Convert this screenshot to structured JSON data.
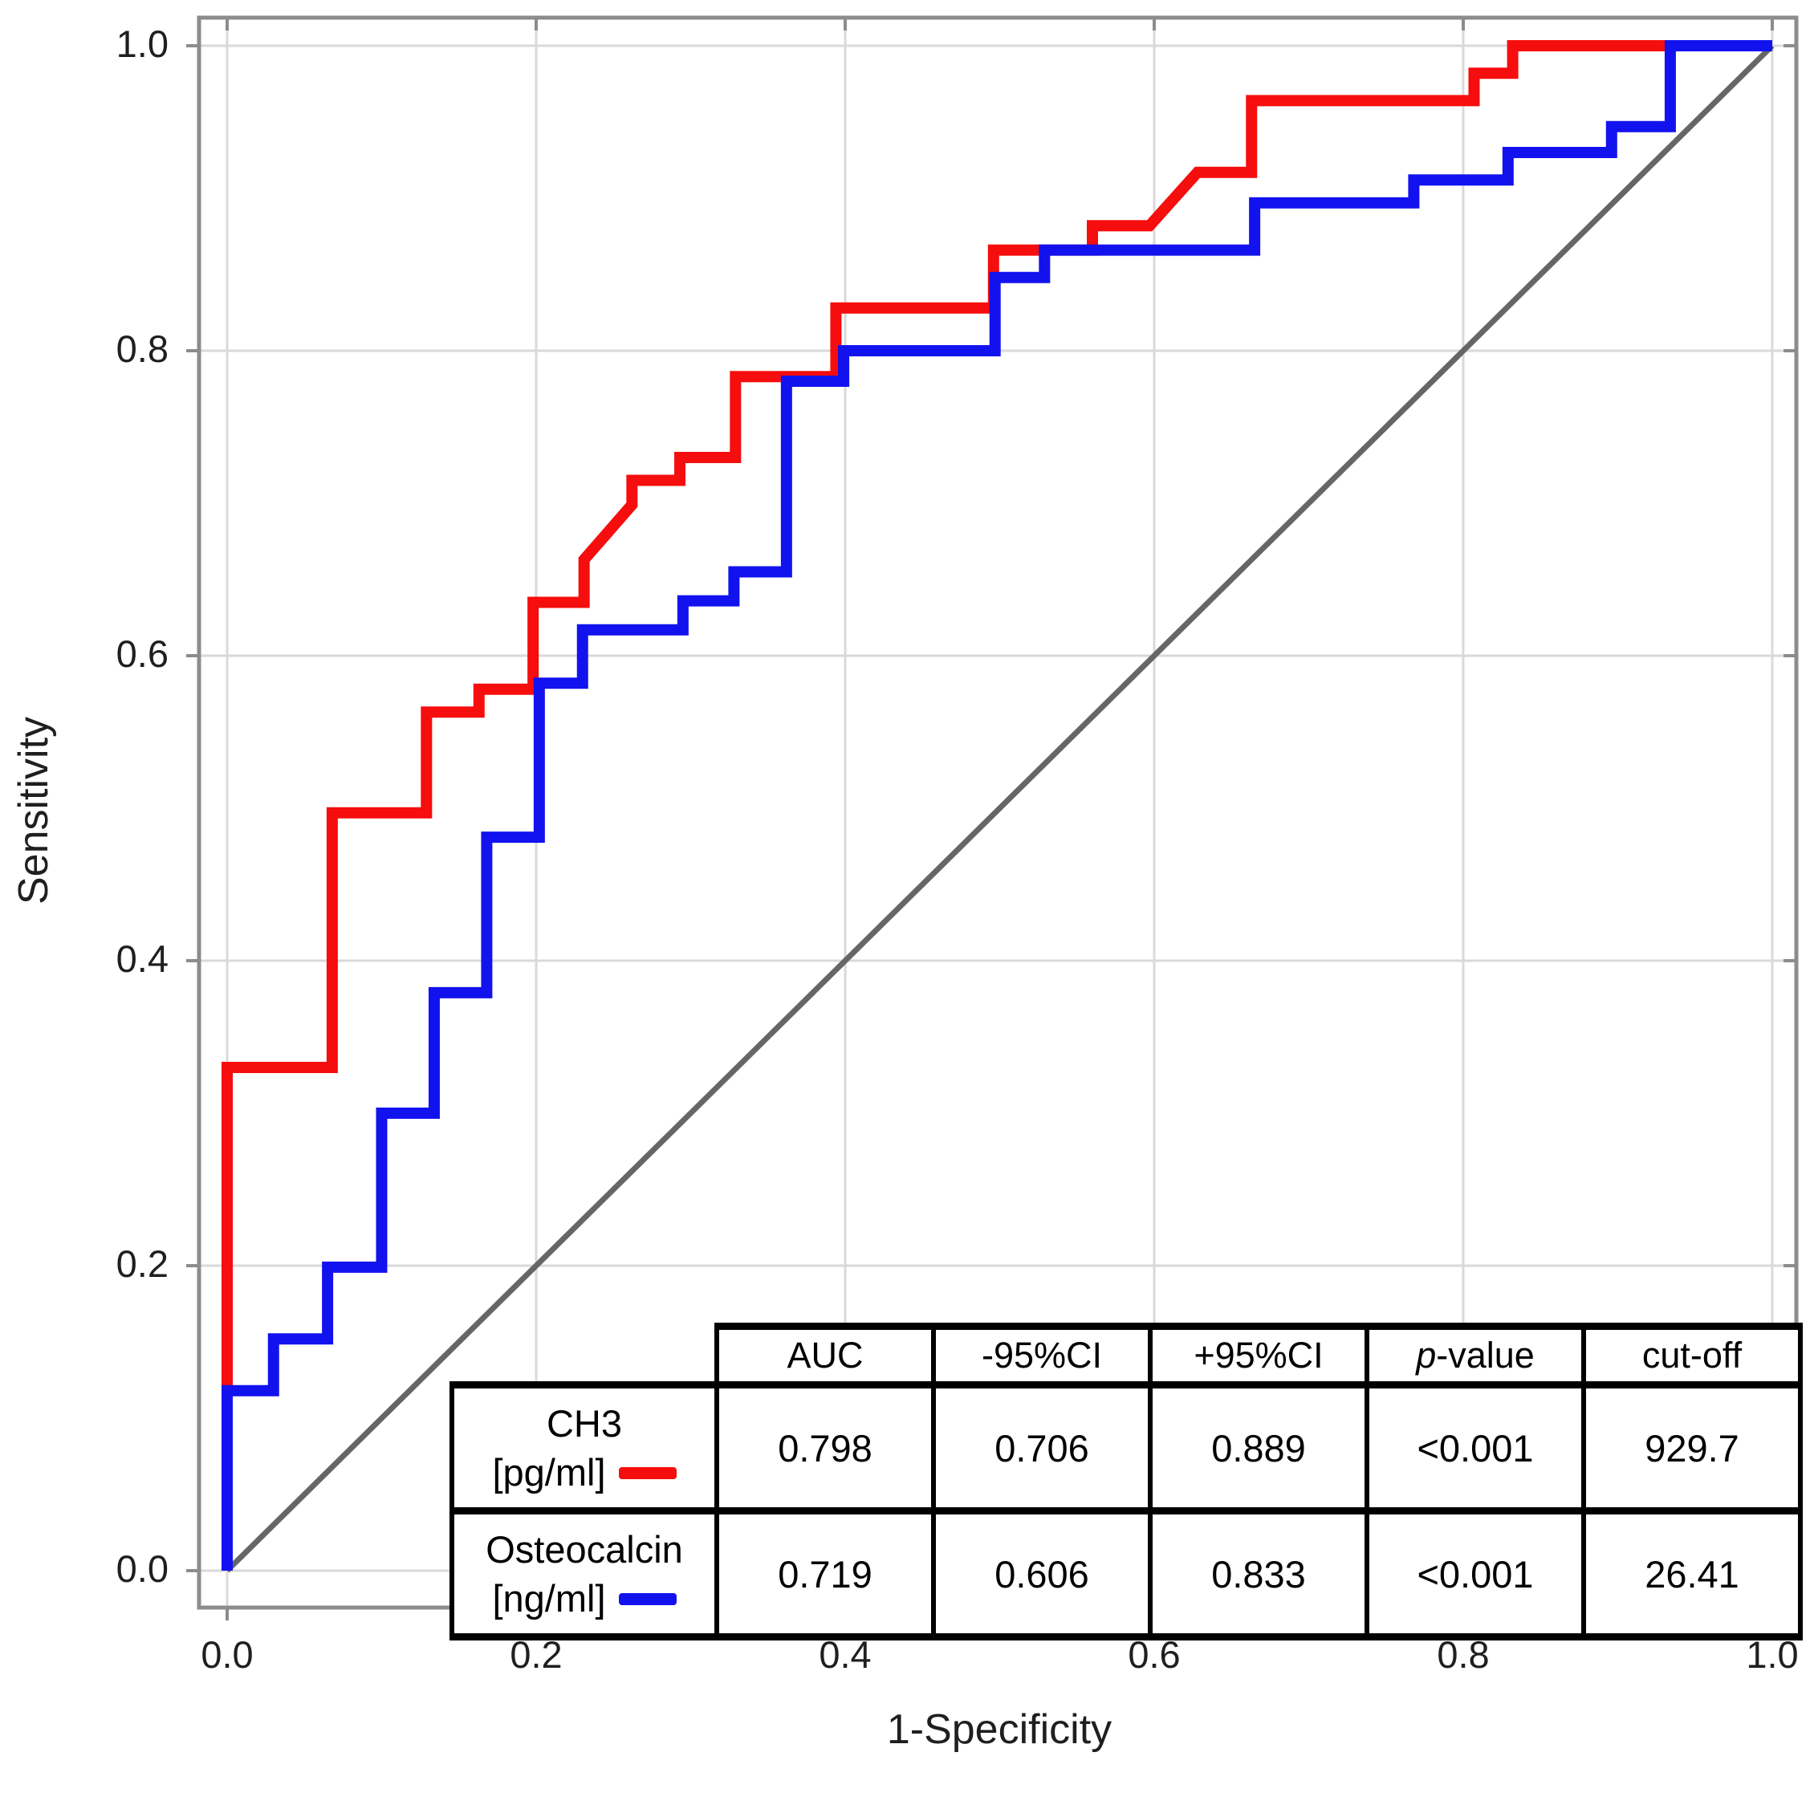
{
  "chart_data": {
    "type": "line",
    "subtype": "roc_step_curves",
    "title": "",
    "xlabel": "1-Specificity",
    "ylabel": "Sensitivity",
    "xlim": [
      0,
      1
    ],
    "ylim": [
      0,
      1
    ],
    "grid": true,
    "x_ticks": [
      0.0,
      0.2,
      0.4,
      0.6,
      0.8,
      1.0
    ],
    "y_ticks": [
      0.0,
      0.2,
      0.4,
      0.6,
      0.8,
      1.0
    ],
    "x_tick_labels": [
      "0.0",
      "0.2",
      "0.4",
      "0.6",
      "0.8",
      "1.0"
    ],
    "y_tick_labels": [
      "0.0",
      "0.2",
      "0.4",
      "0.6",
      "0.8",
      "1.0"
    ],
    "grid_color": "#d9d9d9",
    "frame_color": "#8c8c8c",
    "series": [
      {
        "name": "CH3 [pg/ml]",
        "role": "curve",
        "color": "#f60d0d",
        "points": [
          [
            0,
            0
          ],
          [
            0,
            0.33
          ],
          [
            0.068,
            0.33
          ],
          [
            0.068,
            0.497
          ],
          [
            0.129,
            0.497
          ],
          [
            0.129,
            0.563
          ],
          [
            0.163,
            0.563
          ],
          [
            0.163,
            0.578
          ],
          [
            0.198,
            0.578
          ],
          [
            0.198,
            0.635
          ],
          [
            0.231,
            0.635
          ],
          [
            0.231,
            0.663
          ],
          [
            0.262,
            0.699
          ],
          [
            0.262,
            0.715
          ],
          [
            0.293,
            0.715
          ],
          [
            0.293,
            0.73
          ],
          [
            0.329,
            0.73
          ],
          [
            0.329,
            0.783
          ],
          [
            0.394,
            0.783
          ],
          [
            0.394,
            0.828
          ],
          [
            0.496,
            0.828
          ],
          [
            0.496,
            0.866
          ],
          [
            0.56,
            0.866
          ],
          [
            0.56,
            0.882
          ],
          [
            0.597,
            0.882
          ],
          [
            0.628,
            0.917
          ],
          [
            0.663,
            0.917
          ],
          [
            0.663,
            0.964
          ],
          [
            0.807,
            0.964
          ],
          [
            0.807,
            0.982
          ],
          [
            0.832,
            0.982
          ],
          [
            0.832,
            1
          ],
          [
            1,
            1
          ]
        ]
      },
      {
        "name": "Osteocalcin [ng/ml]",
        "role": "curve",
        "color": "#1212ef",
        "points": [
          [
            0,
            0
          ],
          [
            0,
            0.118
          ],
          [
            0.03,
            0.118
          ],
          [
            0.03,
            0.152
          ],
          [
            0.065,
            0.152
          ],
          [
            0.065,
            0.199
          ],
          [
            0.1,
            0.199
          ],
          [
            0.1,
            0.3
          ],
          [
            0.134,
            0.3
          ],
          [
            0.134,
            0.379
          ],
          [
            0.168,
            0.379
          ],
          [
            0.168,
            0.481
          ],
          [
            0.202,
            0.481
          ],
          [
            0.202,
            0.582
          ],
          [
            0.23,
            0.582
          ],
          [
            0.23,
            0.617
          ],
          [
            0.295,
            0.617
          ],
          [
            0.295,
            0.636
          ],
          [
            0.328,
            0.636
          ],
          [
            0.328,
            0.655
          ],
          [
            0.362,
            0.655
          ],
          [
            0.362,
            0.78
          ],
          [
            0.399,
            0.78
          ],
          [
            0.399,
            0.8
          ],
          [
            0.497,
            0.8
          ],
          [
            0.497,
            0.848
          ],
          [
            0.529,
            0.848
          ],
          [
            0.529,
            0.866
          ],
          [
            0.665,
            0.866
          ],
          [
            0.665,
            0.897
          ],
          [
            0.768,
            0.897
          ],
          [
            0.768,
            0.912
          ],
          [
            0.829,
            0.912
          ],
          [
            0.829,
            0.93
          ],
          [
            0.896,
            0.93
          ],
          [
            0.896,
            0.947
          ],
          [
            0.934,
            0.947
          ],
          [
            0.934,
            1
          ],
          [
            1,
            1
          ]
        ]
      },
      {
        "name": "chance diagonal",
        "role": "reference",
        "color": "#666666",
        "points": [
          [
            0,
            0
          ],
          [
            1,
            1
          ]
        ]
      }
    ]
  },
  "table": {
    "headers": [
      {
        "segments": []
      },
      {
        "segments": [
          {
            "text": "AUC"
          }
        ]
      },
      {
        "segments": [
          {
            "text": "-95%CI"
          }
        ]
      },
      {
        "segments": [
          {
            "text": "+95%CI"
          }
        ]
      },
      {
        "segments": [
          {
            "text": "p",
            "italic": true
          },
          {
            "text": "-value"
          }
        ]
      },
      {
        "segments": [
          {
            "text": "cut-off"
          }
        ]
      }
    ],
    "rows": [
      {
        "label_line1": "CH3",
        "label_line2": "[pg/ml]",
        "swatch_color": "#f60d0d",
        "values": [
          "0.798",
          "0.706",
          "0.889",
          "<0.001",
          "929.7"
        ]
      },
      {
        "label_line1": "Osteocalcin",
        "label_line2": "[ng/ml]",
        "swatch_color": "#1212ef",
        "values": [
          "0.719",
          "0.606",
          "0.833",
          "<0.001",
          "26.41"
        ]
      }
    ]
  }
}
